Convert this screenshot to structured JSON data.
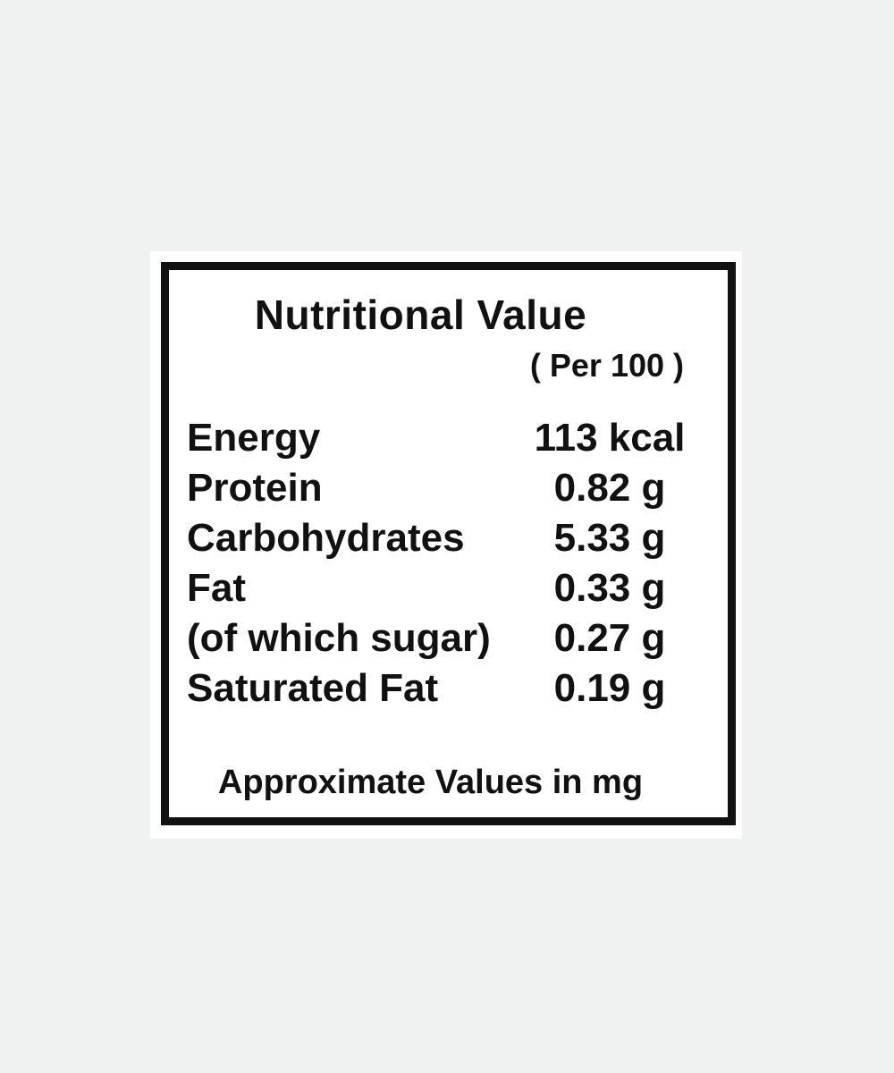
{
  "colors": {
    "page_background": "#f0f1f1",
    "card_background": "#ffffff",
    "ink": "#111111"
  },
  "label": {
    "title": "Nutritional Value",
    "serving_note": "( Per 100 )",
    "rows": [
      {
        "name": "Energy",
        "value": "113 kcal"
      },
      {
        "name": "Protein",
        "value": "0.82 g"
      },
      {
        "name": "Carbohydrates",
        "value": "5.33 g"
      },
      {
        "name": "Fat",
        "value": "0.33 g"
      },
      {
        "name": "(of which sugar)",
        "value": "0.27 g"
      },
      {
        "name": "Saturated Fat",
        "value": "0.19 g"
      }
    ],
    "footnote": "Approximate Values in mg"
  }
}
